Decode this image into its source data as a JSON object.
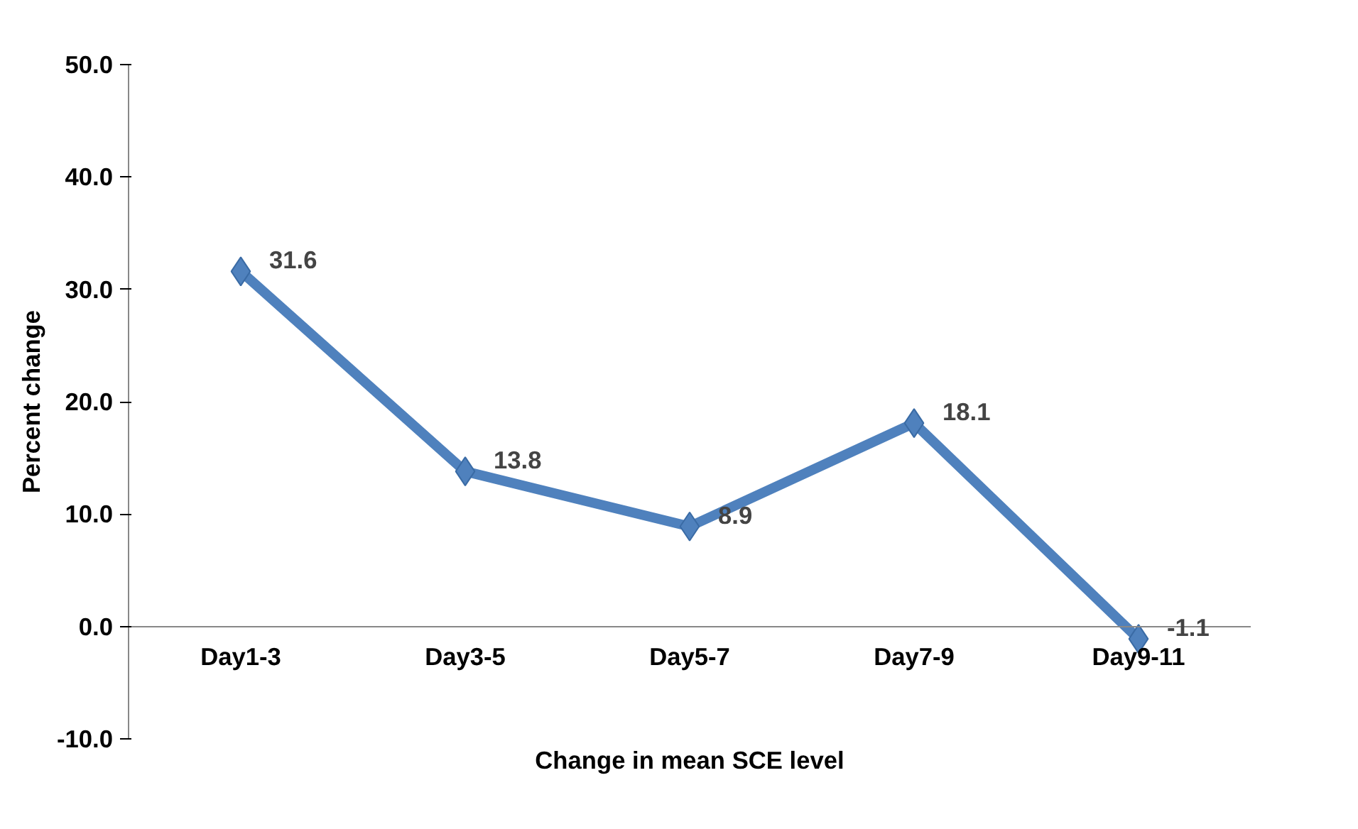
{
  "chart_data": {
    "type": "line",
    "xlabel": "Change in mean SCE level",
    "ylabel": "Percent change",
    "categories": [
      "Day1-3",
      "Day3-5",
      "Day5-7",
      "Day7-9",
      "Day9-11"
    ],
    "series": [
      {
        "color": "#4f81bd",
        "values": [
          31.6,
          13.8,
          8.9,
          18.1,
          -1.1
        ]
      }
    ],
    "ylim": [
      -10,
      50
    ],
    "yticks": [
      {
        "value": -10,
        "label": "-10.0"
      },
      {
        "value": 0,
        "label": "0.0"
      },
      {
        "value": 10,
        "label": "10.0"
      },
      {
        "value": 20,
        "label": "20.0"
      },
      {
        "value": 30,
        "label": "30.0"
      },
      {
        "value": 40,
        "label": "40.0"
      },
      {
        "value": 50,
        "label": "50.0"
      }
    ],
    "data_labels": true,
    "marker": "diamond",
    "grid": false
  }
}
